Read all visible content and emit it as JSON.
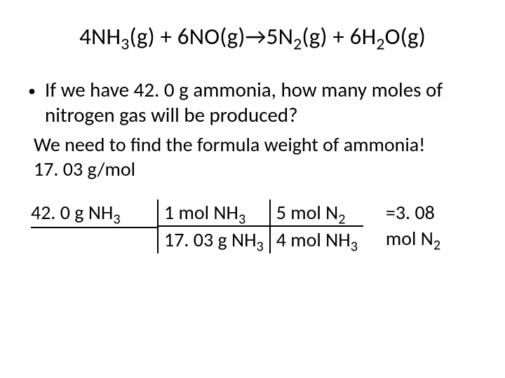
{
  "equation": {
    "c1": "4",
    "s1a": "NH",
    "s1sub": "3",
    "s1b": "(g) + ",
    "c2": "6",
    "s2a": "NO(g)→",
    "c3": "5",
    "s3a": "N",
    "s3sub": "2",
    "s3b": "(g) + ",
    "c4": "6",
    "s4a": "H",
    "s4sub": "2",
    "s4b": "O(g)"
  },
  "bullet": {
    "dot": "•",
    "line": "If we have 42. 0 g ammonia, how many moles of nitrogen gas will be produced?"
  },
  "note": {
    "line1": "We need to find the formula weight of ammonia!",
    "line2": "17. 03 g/mol"
  },
  "work": {
    "given_a": "42. 0 g NH",
    "given_sub": "3",
    "conv1_top_a": "1 mol NH",
    "conv1_top_sub": "3",
    "conv1_bot_a": "17. 03 g NH",
    "conv1_bot_sub": "3",
    "conv2_top_a": "5 mol N",
    "conv2_top_sub": "2",
    "conv2_bot_a": "4 mol NH",
    "conv2_bot_sub": "3",
    "ans_line1": "=3. 08",
    "ans_line2a": "mol N",
    "ans_line2sub": "2"
  }
}
